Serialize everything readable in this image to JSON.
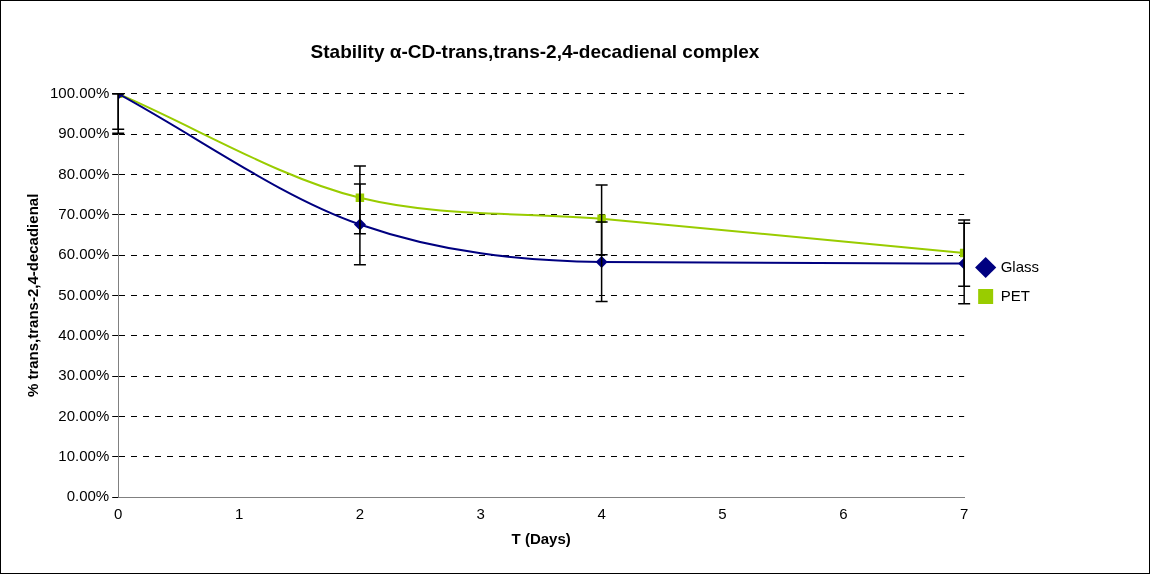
{
  "chart_data": {
    "type": "line",
    "title": "Stability α-CD-trans,trans-2,4-decadienal complex",
    "xlabel": "T (Days)",
    "ylabel": "% trans,trans-2,4-decadienal",
    "x": [
      0,
      2,
      4,
      7
    ],
    "xlim": [
      0,
      7
    ],
    "xticks": [
      0,
      1,
      2,
      3,
      4,
      5,
      6,
      7
    ],
    "ylim": [
      0,
      100
    ],
    "yticks": [
      {
        "value": 0,
        "label": "0.00%"
      },
      {
        "value": 10,
        "label": "10.00%"
      },
      {
        "value": 20,
        "label": "20.00%"
      },
      {
        "value": 30,
        "label": "30.00%"
      },
      {
        "value": 40,
        "label": "40.00%"
      },
      {
        "value": 50,
        "label": "50.00%"
      },
      {
        "value": 60,
        "label": "60.00%"
      },
      {
        "value": 70,
        "label": "70.00%"
      },
      {
        "value": 80,
        "label": "80.00%"
      },
      {
        "value": 90,
        "label": "90.00%"
      },
      {
        "value": 100,
        "label": "100.00%"
      }
    ],
    "grid": "y",
    "legend": "right",
    "line_style": "solid",
    "series": [
      {
        "name": "Glass",
        "color": "#000080",
        "marker": "diamond",
        "values": [
          100,
          67.6,
          58.3,
          57.9
        ],
        "errors": [
          [
            90.2,
            100
          ],
          [
            57.6,
            77.6
          ],
          [
            48.5,
            68.2
          ],
          [
            47.9,
            67.9
          ]
        ]
      },
      {
        "name": "PET",
        "color": "#99cc00",
        "marker": "square",
        "values": [
          100,
          74.2,
          69.0,
          60.5
        ],
        "errors": [
          [
            91.2,
            100
          ],
          [
            65.3,
            82.1
          ],
          [
            60.1,
            77.4
          ],
          [
            52.3,
            68.7
          ]
        ]
      }
    ]
  }
}
